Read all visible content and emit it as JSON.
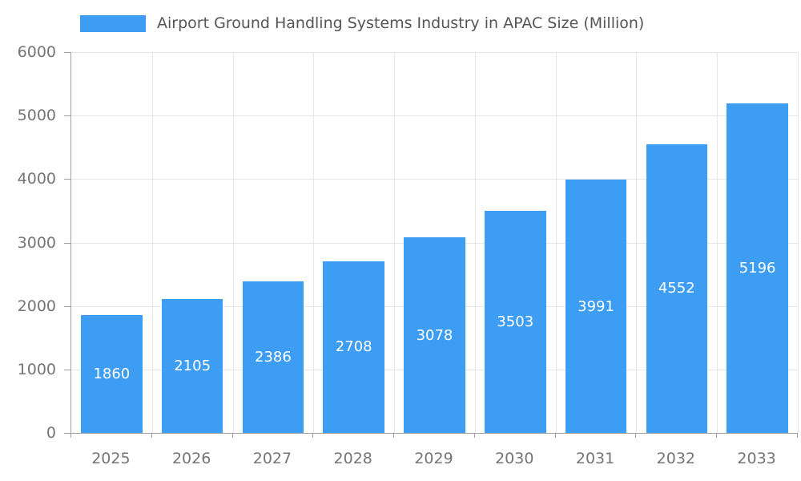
{
  "chart_data": {
    "type": "bar",
    "title": "Airport Ground Handling Systems Industry in APAC Size (Million)",
    "categories": [
      "2025",
      "2026",
      "2027",
      "2028",
      "2029",
      "2030",
      "2031",
      "2032",
      "2033"
    ],
    "values": [
      1860,
      2105,
      2386,
      2708,
      3078,
      3503,
      3991,
      4552,
      5196
    ],
    "xlabel": "",
    "ylabel": "",
    "ylim": [
      0,
      6000
    ],
    "ytick_interval": 1000,
    "yticks": [
      "0",
      "1000",
      "2000",
      "3000",
      "4000",
      "5000",
      "6000"
    ],
    "grid": true,
    "legend_position": "top",
    "value_labels": "inside-center",
    "colors": {
      "bar": "#3d9df3",
      "grid": "#e6e6e6",
      "axis": "#9e9e9e",
      "tick_label": "#757575",
      "title": "#555555",
      "value_label": "#ffffff",
      "background": "#ffffff"
    }
  }
}
